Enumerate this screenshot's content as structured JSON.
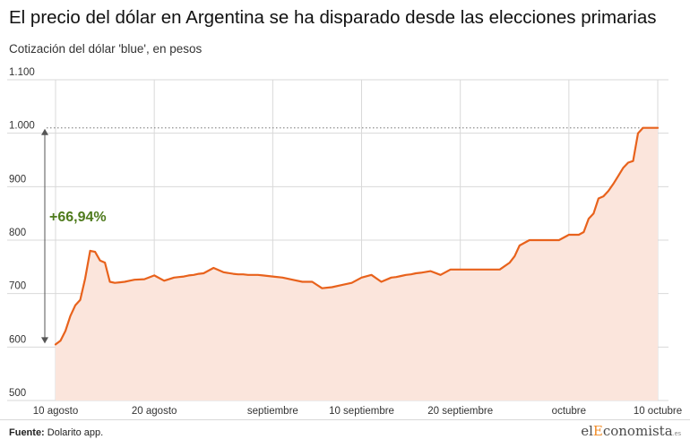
{
  "header": {
    "title": "El precio del dólar en Argentina se ha disparado desde las elecciones primarias",
    "subtitle": "Cotización del dólar 'blue', en pesos"
  },
  "footer": {
    "source_label": "Fuente:",
    "source_text": "Dolarito app.",
    "logo_el": "el",
    "logo_e": "E",
    "logo_rest": "conomista",
    "logo_suffix": ".es"
  },
  "colors": {
    "line": "#e8621c",
    "area": "#fbe5dc",
    "annotation": "#4e7a1c",
    "grid": "#d9d9d9"
  },
  "chart_data": {
    "type": "area",
    "title": "El precio del dólar en Argentina se ha disparado desde las elecciones primarias",
    "subtitle": "Cotización del dólar 'blue', en pesos",
    "xlabel": "",
    "ylabel": "",
    "xlim": [
      0,
      61
    ],
    "ylim": [
      500,
      1100
    ],
    "y_ticks": [
      500,
      600,
      700,
      800,
      900,
      1000,
      1100
    ],
    "y_tick_labels": [
      "500",
      "600",
      "700",
      "800",
      "900",
      "1.000",
      "1.100"
    ],
    "x_ticks": [
      {
        "x": 0,
        "label": "10 agosto"
      },
      {
        "x": 10,
        "label": "20 agosto"
      },
      {
        "x": 22,
        "label": "septiembre"
      },
      {
        "x": 31,
        "label": "10 septiembre"
      },
      {
        "x": 41,
        "label": "20 septiembre"
      },
      {
        "x": 52,
        "label": "octubre"
      },
      {
        "x": 61,
        "label": "10 octubre"
      }
    ],
    "grid": true,
    "reference_line": {
      "value": 1010
    },
    "annotation": {
      "text": "+66,94%",
      "from": 605,
      "to": 1010
    },
    "series": [
      {
        "x": [
          0,
          0.5,
          1,
          1.5,
          2,
          2.5,
          3,
          3.5,
          4,
          4.5,
          5,
          5.5,
          6,
          6.5,
          7,
          7.5,
          8,
          9,
          10,
          11,
          12,
          12.5,
          13,
          13.5,
          14,
          14.5,
          15,
          16,
          17,
          18,
          18.5,
          19,
          19.5,
          20,
          20.5,
          21,
          22,
          23,
          24,
          25,
          26,
          27,
          28,
          29,
          30,
          31,
          32,
          33,
          34,
          34.5,
          35,
          35.5,
          36,
          36.5,
          37,
          38,
          39,
          40,
          41,
          41.5,
          42,
          42.5,
          43,
          44,
          45,
          46,
          46.5,
          47,
          47.5,
          48,
          48.5,
          49,
          49.5,
          50,
          51,
          52,
          53,
          53.5,
          54,
          54.5,
          55,
          55.5,
          56,
          56.5,
          57,
          57.5,
          58,
          58.5,
          59,
          59.5,
          60,
          60.5,
          61
        ],
        "values": [
          605,
          612,
          630,
          658,
          678,
          688,
          728,
          780,
          778,
          762,
          758,
          722,
          720,
          721,
          722,
          724,
          726,
          727,
          734,
          724,
          730,
          731,
          732,
          734,
          735,
          737,
          738,
          748,
          740,
          737,
          736,
          736,
          735,
          735,
          735,
          734,
          732,
          730,
          726,
          722,
          722,
          710,
          712,
          716,
          720,
          730,
          735,
          722,
          730,
          731,
          733,
          735,
          736,
          738,
          739,
          742,
          735,
          745,
          745,
          745,
          745,
          745,
          745,
          745,
          745,
          758,
          770,
          790,
          795,
          800,
          800,
          800,
          800,
          800,
          800,
          810,
          810,
          815,
          840,
          850,
          878,
          882,
          892,
          905,
          920,
          935,
          945,
          948,
          1000,
          1010,
          1010,
          1010,
          1010
        ]
      }
    ]
  }
}
